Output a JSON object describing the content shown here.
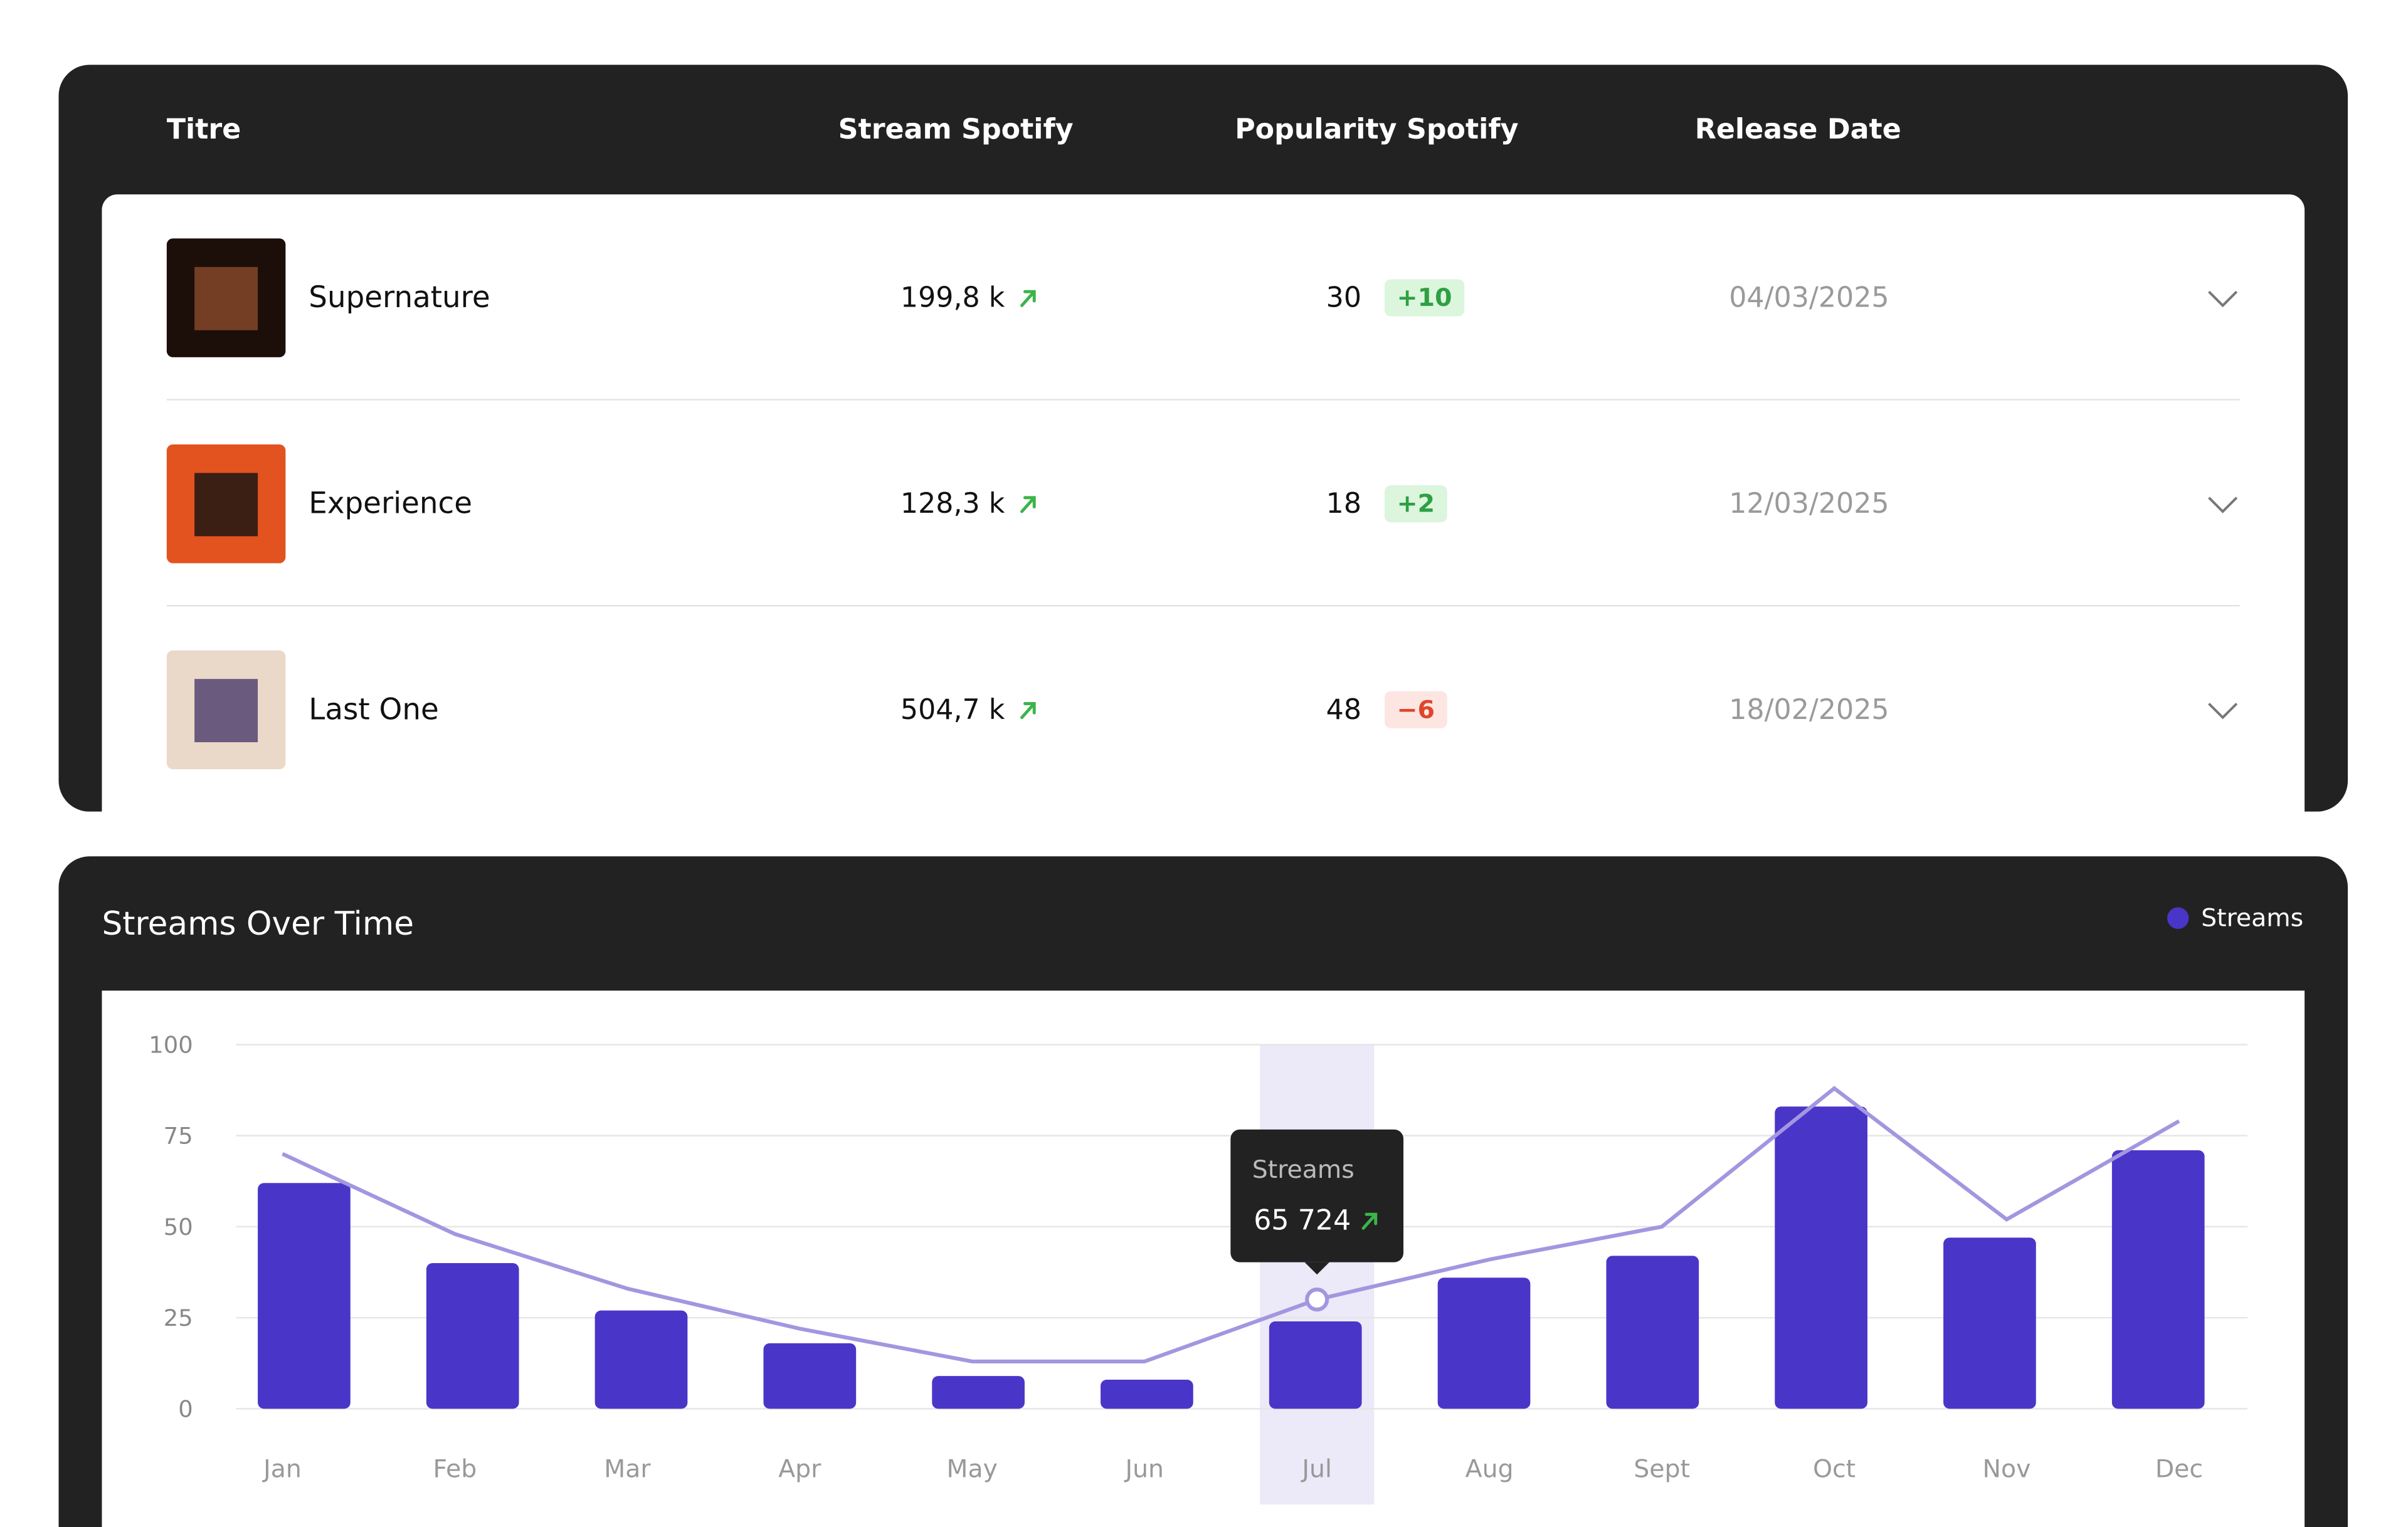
{
  "table": {
    "headers": [
      "Titre",
      "Stream Spotify",
      "Popularity Spotify",
      "Release Date"
    ],
    "rows": [
      {
        "title": "Supernature",
        "streams": "199,8 k",
        "popularity": 30,
        "change": "+10",
        "release": "04/03/2025"
      },
      {
        "title": "Experience",
        "streams": "128,3 k",
        "popularity": 18,
        "change": "+2",
        "release": "12/03/2025"
      },
      {
        "title": "Last One",
        "streams": "504,7 k",
        "popularity": 48,
        "change": "−6",
        "release": "18/02/2025"
      }
    ]
  },
  "chart_data": {
    "type": "bar",
    "title": "Streams Over Time",
    "categories": [
      "Jan",
      "Feb",
      "Mar",
      "Apr",
      "May",
      "Jun",
      "Jul",
      "Aug",
      "Sept",
      "Oct",
      "Nov",
      "Dec"
    ],
    "series": [
      {
        "name": "Streams",
        "color": "#4a35c9",
        "values": [
          62,
          40,
          27,
          18,
          9,
          8,
          24,
          36,
          42,
          83,
          47,
          71
        ]
      }
    ],
    "line": {
      "color": "#a396e0",
      "values": [
        70,
        48,
        33,
        22,
        13,
        13,
        30,
        41,
        50,
        88,
        52,
        79
      ]
    },
    "ylim": [
      0,
      100
    ],
    "yticks": [
      0,
      25,
      50,
      75,
      100
    ],
    "grid": true,
    "tooltip": {
      "category": "Jul",
      "label": "Streams",
      "value": "65 724"
    }
  }
}
